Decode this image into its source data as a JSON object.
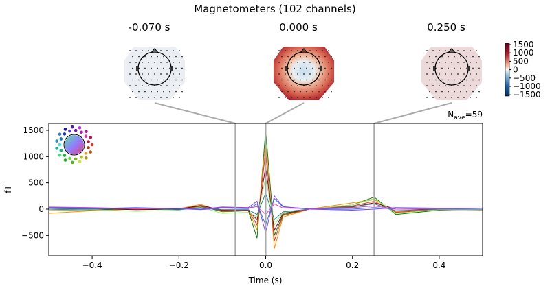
{
  "chart_data": {
    "type": "line",
    "title": "Magnetometers (102 channels)",
    "xlabel": "Time (s)",
    "ylabel": "fT",
    "xlim": [
      -0.5,
      0.5
    ],
    "ylim": [
      -887,
      1630
    ],
    "xticks": [
      "-0.4",
      "-0.2",
      "0.0",
      "0.2",
      "0.4"
    ],
    "xtick_values": [
      -0.4,
      -0.2,
      0.0,
      0.2,
      0.4
    ],
    "yticks": [
      "-500",
      "0",
      "500",
      "1000",
      "1500"
    ],
    "ytick_values": [
      -500,
      0,
      500,
      1000,
      1500
    ],
    "grid": false,
    "annotation_nave": "N",
    "annotation_nave_sub": "ave",
    "annotation_nave_value": "=59",
    "topomap_times": [
      -0.07,
      0.0,
      0.25
    ],
    "topomap_labels": [
      "-0.070 s",
      "0.000 s",
      "0.250 s"
    ],
    "topomap_intensity": [
      -0.08,
      0.9,
      0.15
    ],
    "colorbar": {
      "ticks": [
        "1500",
        "1000",
        "500",
        "0",
        "−500",
        "−1000",
        "−1500"
      ],
      "range": [
        -1500,
        1500
      ],
      "colormap": "RdBu_r"
    },
    "x": [
      -0.5,
      -0.4,
      -0.3,
      -0.2,
      -0.15,
      -0.1,
      -0.04,
      -0.02,
      0,
      0.02,
      0.04,
      0.1,
      0.2,
      0.25,
      0.3,
      0.4,
      0.5
    ],
    "series": [
      {
        "color": "#008000",
        "values": [
          0,
          -20,
          10,
          0,
          60,
          -50,
          -30,
          -550,
          1500,
          -500,
          -100,
          0,
          80,
          230,
          -100,
          -20,
          0
        ]
      },
      {
        "color": "#ff8c00",
        "values": [
          -80,
          -30,
          0,
          10,
          90,
          -40,
          -20,
          -400,
          1300,
          -750,
          -150,
          0,
          120,
          180,
          -50,
          0,
          -20
        ]
      },
      {
        "color": "#e03020",
        "values": [
          -30,
          -10,
          20,
          0,
          50,
          -30,
          -20,
          -300,
          1100,
          -600,
          -120,
          0,
          60,
          150,
          -60,
          -10,
          -10
        ]
      },
      {
        "color": "#800020",
        "values": [
          0,
          10,
          -10,
          0,
          70,
          -20,
          -30,
          -200,
          800,
          -400,
          -80,
          0,
          40,
          120,
          0,
          0,
          0
        ]
      },
      {
        "color": "#90ee70",
        "values": [
          -20,
          -10,
          -40,
          -20,
          40,
          -80,
          -60,
          -150,
          600,
          -300,
          -60,
          0,
          80,
          200,
          -80,
          -10,
          -10
        ]
      },
      {
        "color": "#208080",
        "values": [
          0,
          0,
          20,
          -10,
          30,
          -10,
          -10,
          -100,
          300,
          -200,
          -50,
          0,
          50,
          100,
          -30,
          0,
          0
        ]
      },
      {
        "color": "#3070e0",
        "values": [
          20,
          10,
          30,
          10,
          -10,
          20,
          10,
          100,
          -300,
          200,
          40,
          10,
          0,
          30,
          0,
          10,
          0
        ]
      },
      {
        "color": "#e040c0",
        "values": [
          40,
          30,
          10,
          20,
          0,
          30,
          20,
          50,
          -100,
          100,
          20,
          10,
          30,
          60,
          0,
          10,
          20
        ]
      },
      {
        "color": "#8040ff",
        "values": [
          30,
          20,
          20,
          20,
          0,
          40,
          30,
          150,
          -450,
          250,
          50,
          0,
          -20,
          0,
          30,
          20,
          20
        ]
      }
    ]
  }
}
